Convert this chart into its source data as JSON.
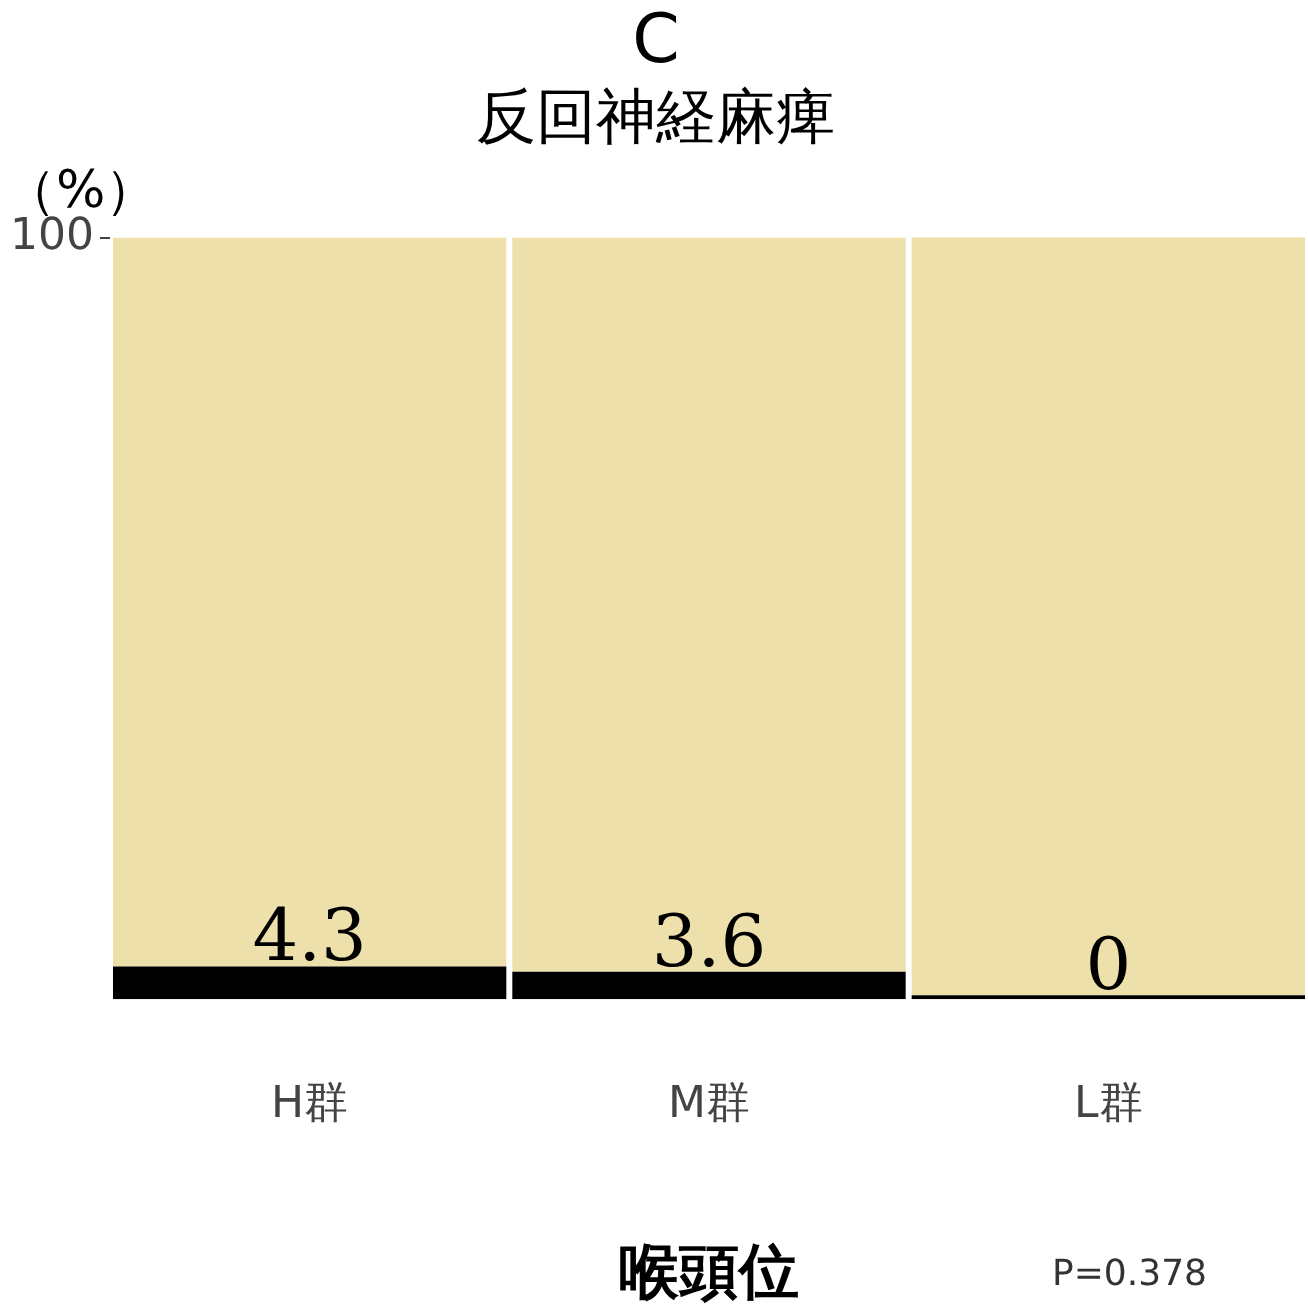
{
  "chart_data": {
    "type": "bar",
    "title": "C",
    "subtitle": "反回神経麻痺",
    "ylabel": "（%）",
    "xlabel": "喉頭位",
    "annotations": [
      "P=0.378"
    ],
    "categories": [
      "H群",
      "M群",
      "L群"
    ],
    "stacked": true,
    "ylim": [
      0,
      100
    ],
    "yticks": [
      100
    ],
    "grid": false,
    "legend": false,
    "series": [
      {
        "color": "#000000",
        "values": [
          4.3,
          3.6,
          0
        ],
        "value_labels": [
          "4.3",
          "3.6",
          "0"
        ]
      },
      {
        "color": "#ede0ab",
        "values": [
          95.7,
          96.4,
          100
        ]
      }
    ]
  }
}
